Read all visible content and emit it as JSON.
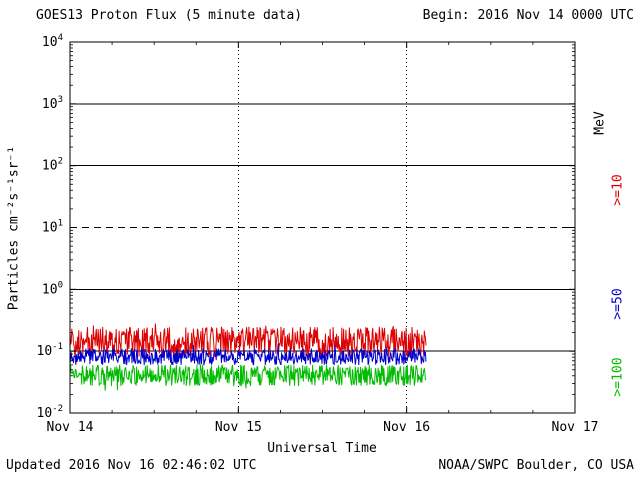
{
  "header": {
    "title": "GOES13 Proton Flux (5 minute data)",
    "begin": "Begin: 2016 Nov 14 0000 UTC"
  },
  "right_labels": {
    "unit": "MeV",
    "ge10": ">=10",
    "ge50": ">=50",
    "ge100": ">=100"
  },
  "footer": {
    "updated": "Updated 2016 Nov 16 02:46:02 UTC",
    "credit": "NOAA/SWPC Boulder, CO USA"
  },
  "chart_data": {
    "type": "line",
    "title": "GOES13 Proton Flux (5 minute data)",
    "xlabel": "Universal Time",
    "ylabel": "Particles cm⁻²s⁻¹sr⁻¹",
    "x_ticks": [
      "Nov 14",
      "Nov 15",
      "Nov 16",
      "Nov 17"
    ],
    "x_span_days": 3,
    "y_scale": "log10",
    "y_log_range": [
      -2,
      4
    ],
    "y_tick_exponents": [
      4,
      3,
      2,
      1,
      0,
      -1,
      -2
    ],
    "threshold_line_log": 1,
    "grid": {
      "h_decade_lines": "solid",
      "h_threshold_line": "dashed",
      "v_day_lines": "dotted"
    },
    "legend_position": "right",
    "data_start_day": 0,
    "data_end_day": 2.115,
    "samples_per_day": 288,
    "seed": 20161114,
    "series": [
      {
        "name": ">=10 MeV",
        "color": "#dd0000",
        "center_log10": -0.85,
        "noise_log10": 0.24,
        "approx_center_flux": 0.14,
        "approx_range_flux": [
          0.08,
          0.3
        ]
      },
      {
        "name": ">=50 MeV",
        "color": "#0000cc",
        "center_log10": -1.09,
        "noise_log10": 0.13,
        "approx_center_flux": 0.08,
        "approx_range_flux": [
          0.055,
          0.12
        ]
      },
      {
        "name": ">=100 MeV",
        "color": "#00bb00",
        "center_log10": -1.39,
        "noise_log10": 0.17,
        "approx_center_flux": 0.04,
        "approx_range_flux": [
          0.025,
          0.06
        ]
      }
    ]
  }
}
